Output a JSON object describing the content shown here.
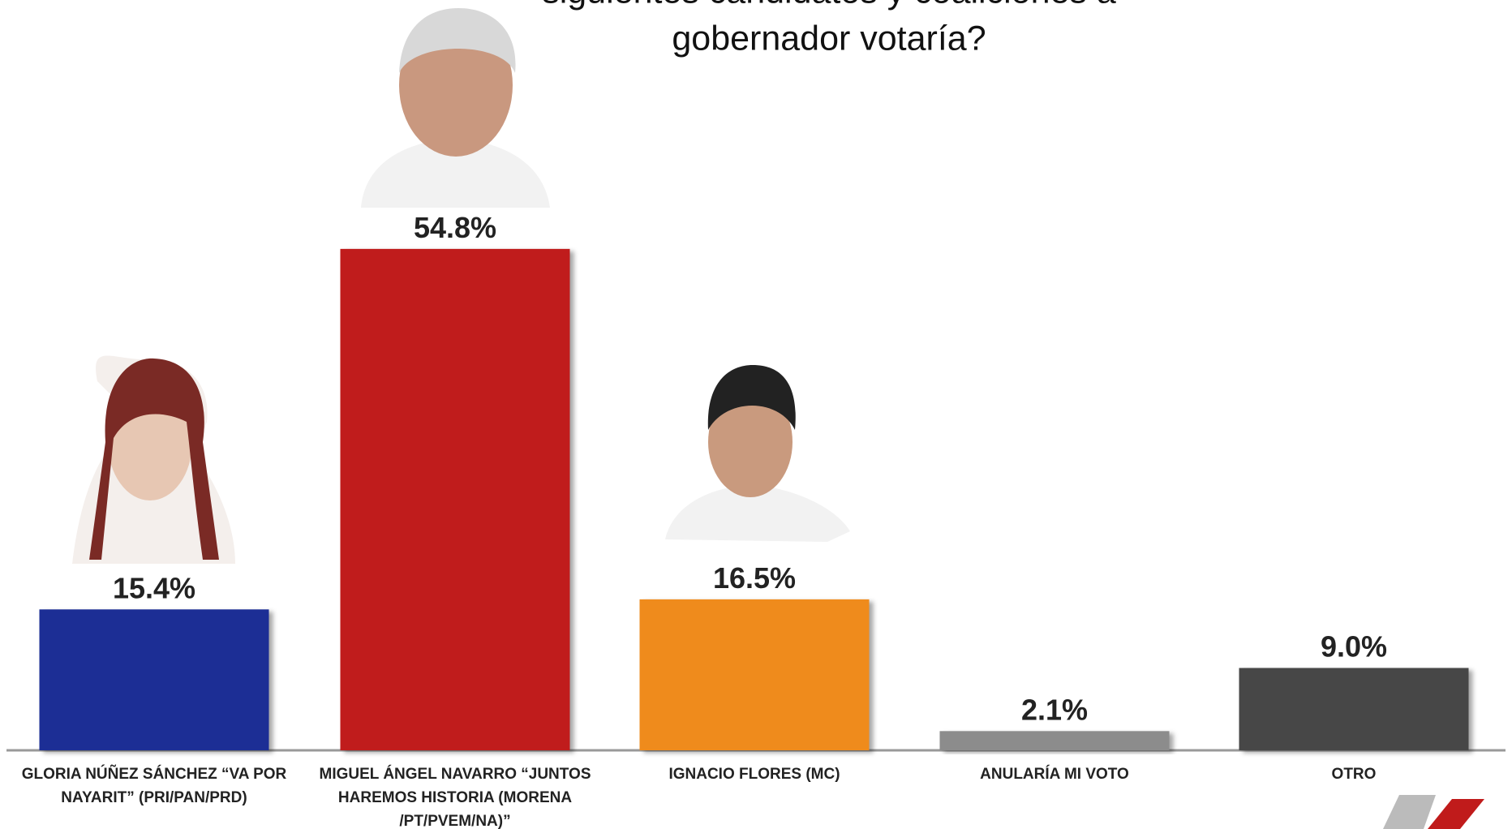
{
  "chart_data": {
    "type": "bar",
    "title_lines": [
      "siguientes candidatos y coaliciones a",
      "gobernador votaría?"
    ],
    "categories": [
      "GLORIA NÚÑEZ SÁNCHEZ “VA POR NAYARIT” (PRI/PAN/PRD)",
      "MIGUEL ÁNGEL NAVARRO “JUNTOS HAREMOS HISTORIA (MORENA /PT/PVEM/NA)”",
      "IGNACIO FLORES (MC)",
      "ANULARÍA MI VOTO",
      "OTRO"
    ],
    "values": [
      15.4,
      54.8,
      16.5,
      2.1,
      9.0
    ],
    "value_labels": [
      "15.4%",
      "54.8%",
      "16.5%",
      "2.1%",
      "9.0%"
    ],
    "colors": [
      "#1f2e95",
      "#c01b1b",
      "#ef8b1b",
      "#8c8c8c",
      "#474747"
    ]
  }
}
